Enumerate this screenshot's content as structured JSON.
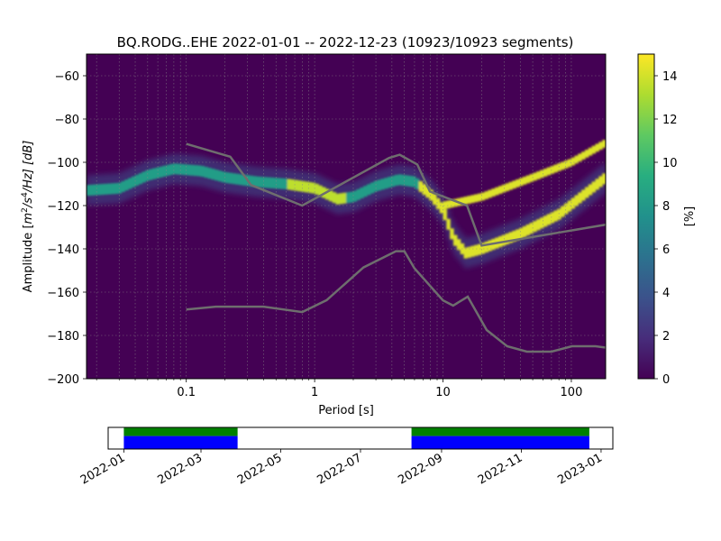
{
  "chart_data": [
    {
      "type": "heatmap",
      "title": "BQ.RODG..EHE   2022-01-01 -- 2022-12-23  (10923/10923 segments)",
      "xlabel": "Period [s]",
      "ylabel_prefix": "Amplitude [",
      "ylabel_m": "m",
      "ylabel_s": "/s",
      "ylabel_hz": "/Hz] [dB]",
      "ylabel_sup2": "2",
      "ylabel_sup4": "4",
      "x_scale": "log",
      "xlim": [
        0.0167,
        185
      ],
      "ylim": [
        -200,
        -50
      ],
      "x_ticks": [
        {
          "value": 0.1,
          "label": "0.1"
        },
        {
          "value": 1,
          "label": "1"
        },
        {
          "value": 10,
          "label": "10"
        },
        {
          "value": 100,
          "label": "100"
        }
      ],
      "y_ticks": [
        {
          "value": -60,
          "label": "−60"
        },
        {
          "value": -80,
          "label": "−80"
        },
        {
          "value": -100,
          "label": "−100"
        },
        {
          "value": -120,
          "label": "−120"
        },
        {
          "value": -140,
          "label": "−140"
        },
        {
          "value": -160,
          "label": "−160"
        },
        {
          "value": -180,
          "label": "−180"
        },
        {
          "value": -200,
          "label": "−200"
        }
      ],
      "grid": true,
      "background_color": "#440154",
      "colorbar": {
        "label": "[%]",
        "range": [
          0,
          15
        ],
        "ticks": [
          {
            "value": 0,
            "label": "0"
          },
          {
            "value": 2,
            "label": "2"
          },
          {
            "value": 4,
            "label": "4"
          },
          {
            "value": 6,
            "label": "6"
          },
          {
            "value": 8,
            "label": "8"
          },
          {
            "value": 10,
            "label": "10"
          },
          {
            "value": 12,
            "label": "12"
          },
          {
            "value": 14,
            "label": "14"
          }
        ],
        "colormap": "viridis"
      },
      "density_modes": [
        {
          "name": "main",
          "points": [
            [
              0.0167,
              -113
            ],
            [
              0.03,
              -112
            ],
            [
              0.05,
              -106
            ],
            [
              0.08,
              -103
            ],
            [
              0.13,
              -104
            ],
            [
              0.2,
              -107
            ],
            [
              0.35,
              -109
            ],
            [
              0.6,
              -110
            ],
            [
              1.0,
              -112
            ],
            [
              1.5,
              -117
            ],
            [
              2.0,
              -116
            ],
            [
              3.0,
              -111
            ],
            [
              4.5,
              -108
            ],
            [
              6.0,
              -109
            ],
            [
              8.0,
              -115
            ],
            [
              10.0,
              -122
            ],
            [
              12.0,
              -135
            ],
            [
              15.0,
              -142
            ],
            [
              20.0,
              -140
            ],
            [
              40.0,
              -133
            ],
            [
              80.0,
              -124
            ],
            [
              185,
              -107
            ]
          ]
        },
        {
          "name": "upper",
          "points": [
            [
              10.0,
              -120
            ],
            [
              20.0,
              -116
            ],
            [
              50.0,
              -107
            ],
            [
              100.0,
              -100
            ],
            [
              185,
              -91
            ]
          ]
        }
      ],
      "noise_models": [
        {
          "name": "high",
          "points": [
            [
              0.1,
              -91.5
            ],
            [
              0.22,
              -97.4
            ],
            [
              0.32,
              -110.5
            ],
            [
              0.8,
              -120
            ],
            [
              3.8,
              -98
            ],
            [
              4.6,
              -96.5
            ],
            [
              6.3,
              -101
            ],
            [
              7.9,
              -113.5
            ],
            [
              15.4,
              -120
            ],
            [
              20,
              -138.5
            ],
            [
              354.8,
              -126
            ]
          ]
        },
        {
          "name": "low",
          "points": [
            [
              0.1,
              -168
            ],
            [
              0.17,
              -166.7
            ],
            [
              0.4,
              -166.7
            ],
            [
              0.8,
              -169.2
            ],
            [
              1.24,
              -163.7
            ],
            [
              2.4,
              -148.6
            ],
            [
              4.3,
              -141.1
            ],
            [
              5.0,
              -141.1
            ],
            [
              6.0,
              -149
            ],
            [
              10.0,
              -163.8
            ],
            [
              12.0,
              -166.2
            ],
            [
              15.6,
              -162.1
            ],
            [
              21.9,
              -177.5
            ],
            [
              31.6,
              -185
            ],
            [
              45,
              -187.5
            ],
            [
              70,
              -187.5
            ],
            [
              101,
              -185
            ],
            [
              154,
              -185
            ],
            [
              328,
              -187.5
            ]
          ]
        }
      ]
    },
    {
      "type": "timeline",
      "x_range": [
        "2021-12-20",
        "2023-01-10"
      ],
      "x_ticks": [
        {
          "value": "2022-01-01",
          "label": "2022-01"
        },
        {
          "value": "2022-03-01",
          "label": "2022-03"
        },
        {
          "value": "2022-05-01",
          "label": "2022-05"
        },
        {
          "value": "2022-07-01",
          "label": "2022-07"
        },
        {
          "value": "2022-09-01",
          "label": "2022-09"
        },
        {
          "value": "2022-11-01",
          "label": "2022-11"
        },
        {
          "value": "2023-01-01",
          "label": "2023-01"
        }
      ],
      "segments": [
        {
          "start": "2022-01-01",
          "end": "2022-03-29"
        },
        {
          "start": "2022-08-09",
          "end": "2022-12-23"
        }
      ],
      "colors": {
        "data": "#0000ff",
        "processed": "#008000"
      }
    }
  ]
}
